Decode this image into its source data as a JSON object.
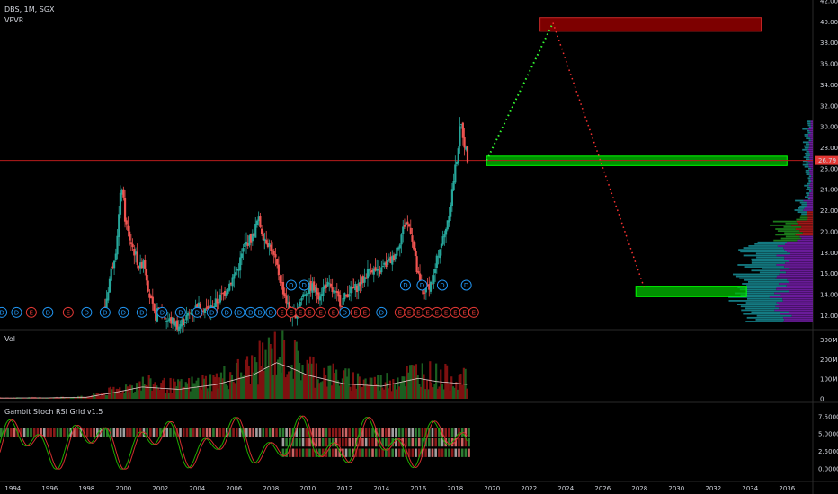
{
  "header": {
    "symbol_line": "DBS, 1M, SGX",
    "indicator_1": "VPVR",
    "volume_label": "Vol",
    "oscillator_label": "Gambit Stoch RSI Grid v1.5"
  },
  "colors": {
    "background": "#000000",
    "up": "#26a69a",
    "down": "#ef5350",
    "price_line": "#b71c1c",
    "support_zone": "#00c000",
    "target_zone": "#8b0000",
    "projection_up": "#33ff33",
    "projection_down": "#ff3333",
    "vpvr_teal": "#147a82",
    "vpvr_purple": "#6a1b9a",
    "vpvr_red": "#a01818",
    "vpvr_green": "#1b7a1b",
    "grid_line": "#222222"
  },
  "chart_data": {
    "type": "candlestick",
    "x_axis_ticks": [
      "1994",
      "1996",
      "1998",
      "2000",
      "2002",
      "2004",
      "2006",
      "2008",
      "2010",
      "2012",
      "2014",
      "2016",
      "2018",
      "2020",
      "2022",
      "2024",
      "2026",
      "2028",
      "2030",
      "2032",
      "2034",
      "2036"
    ],
    "x_range": [
      1993,
      2037
    ],
    "price_axis_ticks": [
      "12.00",
      "14.00",
      "16.00",
      "18.00",
      "20.00",
      "22.00",
      "24.00",
      "26.00",
      "28.00",
      "30.00",
      "32.00",
      "34.00",
      "36.00",
      "38.00",
      "40.00",
      "42.00"
    ],
    "price_range": [
      11.0,
      42.0
    ],
    "last_price": "26.79",
    "last_price_value": 26.79,
    "price_path": [
      [
        1999.0,
        12.8
      ],
      [
        1999.3,
        16.0
      ],
      [
        1999.6,
        18.5
      ],
      [
        1999.9,
        24.6
      ],
      [
        2000.1,
        21.0
      ],
      [
        2000.3,
        19.5
      ],
      [
        2000.6,
        18.0
      ],
      [
        2000.9,
        16.5
      ],
      [
        2001.1,
        17.5
      ],
      [
        2001.4,
        14.0
      ],
      [
        2001.7,
        11.8
      ],
      [
        2002.0,
        12.8
      ],
      [
        2002.3,
        11.6
      ],
      [
        2002.7,
        11.4
      ],
      [
        2003.0,
        11.0
      ],
      [
        2003.4,
        11.8
      ],
      [
        2003.8,
        12.6
      ],
      [
        2004.2,
        13.0
      ],
      [
        2004.6,
        12.4
      ],
      [
        2005.0,
        13.2
      ],
      [
        2005.4,
        14.0
      ],
      [
        2005.8,
        15.2
      ],
      [
        2006.2,
        16.5
      ],
      [
        2006.6,
        18.8
      ],
      [
        2007.0,
        19.5
      ],
      [
        2007.3,
        21.2
      ],
      [
        2007.6,
        19.6
      ],
      [
        2008.0,
        18.5
      ],
      [
        2008.3,
        16.8
      ],
      [
        2008.6,
        14.8
      ],
      [
        2008.9,
        13.0
      ],
      [
        2009.2,
        11.6
      ],
      [
        2009.5,
        13.0
      ],
      [
        2009.8,
        14.2
      ],
      [
        2010.2,
        14.8
      ],
      [
        2010.6,
        14.0
      ],
      [
        2011.0,
        15.0
      ],
      [
        2011.4,
        14.2
      ],
      [
        2011.8,
        13.2
      ],
      [
        2012.2,
        14.3
      ],
      [
        2012.6,
        14.6
      ],
      [
        2013.0,
        15.4
      ],
      [
        2013.4,
        16.6
      ],
      [
        2013.8,
        16.0
      ],
      [
        2014.2,
        16.8
      ],
      [
        2014.6,
        17.4
      ],
      [
        2015.0,
        19.2
      ],
      [
        2015.3,
        21.0
      ],
      [
        2015.6,
        20.2
      ],
      [
        2015.9,
        16.4
      ],
      [
        2016.2,
        14.0
      ],
      [
        2016.5,
        14.8
      ],
      [
        2016.8,
        15.3
      ],
      [
        2017.1,
        18.2
      ],
      [
        2017.4,
        19.6
      ],
      [
        2017.7,
        22.2
      ],
      [
        2017.9,
        24.8
      ],
      [
        2018.1,
        27.2
      ],
      [
        2018.3,
        30.4
      ],
      [
        2018.5,
        28.4
      ],
      [
        2018.7,
        26.79
      ]
    ],
    "volume_axis_ticks": [
      "300M",
      "200M",
      "100M",
      "0"
    ],
    "volume_range": [
      0,
      320
    ],
    "volume_path": [
      [
        1993.0,
        5
      ],
      [
        1996.0,
        6
      ],
      [
        1998.0,
        10
      ],
      [
        1999.5,
        40
      ],
      [
        2001.0,
        75
      ],
      [
        2003.0,
        60
      ],
      [
        2005.0,
        90
      ],
      [
        2007.0,
        150
      ],
      [
        2008.3,
        230
      ],
      [
        2009.0,
        200
      ],
      [
        2010.0,
        150
      ],
      [
        2012.0,
        95
      ],
      [
        2014.0,
        80
      ],
      [
        2016.0,
        130
      ],
      [
        2017.0,
        110
      ],
      [
        2018.0,
        100
      ],
      [
        2018.7,
        90
      ]
    ],
    "oscillator_axis_ticks": [
      "7.5000",
      "5.0000",
      "2.5000",
      "0.0000"
    ],
    "oscillator_range": [
      -0.5,
      8.5
    ],
    "support_zone_upper": {
      "x0": 2019.7,
      "x1": 2036.0,
      "y0": 26.3,
      "y1": 27.2
    },
    "support_zone_lower": {
      "x0": 2027.8,
      "x1": 2033.8,
      "y0": 13.8,
      "y1": 14.8
    },
    "target_zone": {
      "x0": 2022.6,
      "x1": 2034.6,
      "y0": 39.1,
      "y1": 40.4
    },
    "projection": [
      [
        2019.7,
        26.79
      ],
      [
        2023.3,
        39.9
      ],
      [
        2028.3,
        14.4
      ]
    ],
    "event_markers": {
      "row_top_y": 14.9,
      "row_bottom_y": 12.3,
      "bottom_row": [
        {
          "x": 1993.4,
          "t": "D"
        },
        {
          "x": 1994.2,
          "t": "D"
        },
        {
          "x": 1995.0,
          "t": "E"
        },
        {
          "x": 1995.9,
          "t": "D"
        },
        {
          "x": 1997.0,
          "t": "E"
        },
        {
          "x": 1998.0,
          "t": "D"
        },
        {
          "x": 1999.0,
          "t": "D"
        },
        {
          "x": 2000.0,
          "t": "D"
        },
        {
          "x": 2001.0,
          "t": "D"
        },
        {
          "x": 2002.1,
          "t": "D"
        },
        {
          "x": 2003.1,
          "t": "D"
        },
        {
          "x": 2004.0,
          "t": "D"
        },
        {
          "x": 2004.8,
          "t": "D"
        },
        {
          "x": 2005.6,
          "t": "D"
        },
        {
          "x": 2006.3,
          "t": "D"
        },
        {
          "x": 2006.9,
          "t": "D"
        },
        {
          "x": 2007.4,
          "t": "D"
        },
        {
          "x": 2008.0,
          "t": "D"
        },
        {
          "x": 2008.6,
          "t": "E"
        },
        {
          "x": 2009.1,
          "t": "E"
        },
        {
          "x": 2009.6,
          "t": "E"
        },
        {
          "x": 2010.1,
          "t": "E"
        },
        {
          "x": 2010.7,
          "t": "E"
        },
        {
          "x": 2011.4,
          "t": "E"
        },
        {
          "x": 2012.0,
          "t": "D"
        },
        {
          "x": 2012.6,
          "t": "E"
        },
        {
          "x": 2013.1,
          "t": "E"
        },
        {
          "x": 2014.0,
          "t": "D"
        },
        {
          "x": 2015.0,
          "t": "E"
        },
        {
          "x": 2015.5,
          "t": "E"
        },
        {
          "x": 2016.0,
          "t": "E"
        },
        {
          "x": 2016.5,
          "t": "E"
        },
        {
          "x": 2017.0,
          "t": "E"
        },
        {
          "x": 2017.5,
          "t": "E"
        },
        {
          "x": 2018.0,
          "t": "E"
        },
        {
          "x": 2018.5,
          "t": "E"
        },
        {
          "x": 2019.0,
          "t": "E"
        }
      ],
      "top_row": [
        {
          "x": 2009.1,
          "t": "D"
        },
        {
          "x": 2009.8,
          "t": "D"
        },
        {
          "x": 2015.3,
          "t": "D"
        },
        {
          "x": 2016.2,
          "t": "D"
        },
        {
          "x": 2017.3,
          "t": "D"
        },
        {
          "x": 2018.6,
          "t": "D"
        }
      ]
    }
  }
}
